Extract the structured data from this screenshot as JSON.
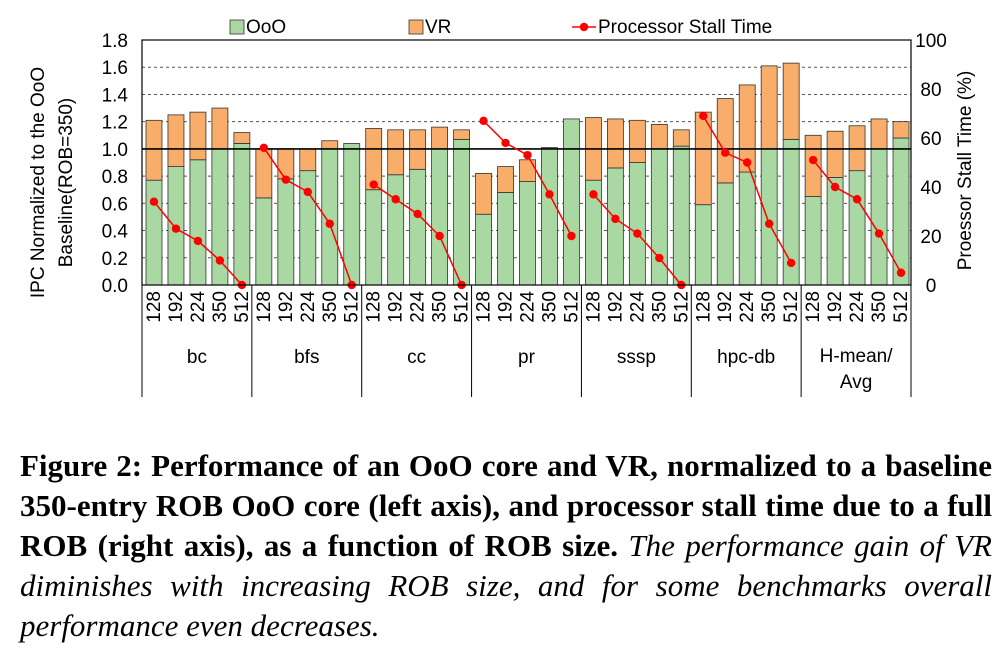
{
  "chart_data": {
    "type": "bar",
    "stacked": true,
    "legend": {
      "position": "top",
      "items": [
        {
          "label": "OoO",
          "kind": "bar",
          "color": "#a9d8a3"
        },
        {
          "label": "VR",
          "kind": "bar",
          "color": "#f9ad6b"
        },
        {
          "label": "Processor Stall Time",
          "kind": "line",
          "color": "#ff0000"
        }
      ]
    },
    "y_left": {
      "label_lines": [
        "IPC Normalized to the OoO",
        "Baseline(ROB=350)"
      ],
      "min": 0,
      "max": 1.8,
      "step": 0.2,
      "tick_labels": [
        "0.0",
        "0.2",
        "0.4",
        "0.6",
        "0.8",
        "1.0",
        "1.2",
        "1.4",
        "1.6",
        "1.8"
      ],
      "reference_line": 1.0
    },
    "y_right": {
      "label": "Proessor Stall Time (%)",
      "min": 0,
      "max": 100,
      "step": 20,
      "tick_labels": [
        "0",
        "20",
        "40",
        "60",
        "80",
        "100"
      ]
    },
    "rob_sizes": [
      "128",
      "192",
      "224",
      "350",
      "512"
    ],
    "groups": [
      {
        "name_lines": [
          "bc"
        ],
        "ooo": [
          0.77,
          0.87,
          0.92,
          1.0,
          1.04
        ],
        "total": [
          1.21,
          1.25,
          1.27,
          1.3,
          1.12
        ],
        "stall": [
          34,
          23,
          18,
          10,
          0
        ]
      },
      {
        "name_lines": [
          "bfs"
        ],
        "ooo": [
          0.64,
          0.78,
          0.84,
          1.0,
          1.04
        ],
        "total": [
          1.0,
          1.0,
          1.0,
          1.06,
          1.04
        ],
        "stall": [
          56,
          43,
          38,
          25,
          0
        ]
      },
      {
        "name_lines": [
          "cc"
        ],
        "ooo": [
          0.7,
          0.81,
          0.85,
          1.0,
          1.07
        ],
        "total": [
          1.15,
          1.14,
          1.14,
          1.16,
          1.14
        ],
        "stall": [
          41,
          35,
          29,
          20,
          0
        ]
      },
      {
        "name_lines": [
          "pr"
        ],
        "ooo": [
          0.52,
          0.68,
          0.76,
          1.01,
          1.22
        ],
        "total": [
          0.82,
          0.87,
          0.92,
          1.01,
          1.22
        ],
        "stall": [
          67,
          58,
          53,
          37,
          20
        ]
      },
      {
        "name_lines": [
          "sssp"
        ],
        "ooo": [
          0.77,
          0.86,
          0.9,
          1.0,
          1.02
        ],
        "total": [
          1.23,
          1.22,
          1.21,
          1.18,
          1.14
        ],
        "stall": [
          37,
          27,
          21,
          11,
          0
        ]
      },
      {
        "name_lines": [
          "hpc-db"
        ],
        "ooo": [
          0.59,
          0.75,
          0.83,
          1.0,
          1.07
        ],
        "total": [
          1.27,
          1.37,
          1.47,
          1.61,
          1.63
        ],
        "stall": [
          69,
          54,
          50,
          25,
          9
        ]
      },
      {
        "name_lines": [
          "H-mean/",
          "Avg"
        ],
        "ooo": [
          0.65,
          0.79,
          0.84,
          1.0,
          1.08
        ],
        "total": [
          1.1,
          1.13,
          1.17,
          1.22,
          1.2
        ],
        "stall": [
          51,
          40,
          35,
          21,
          5
        ]
      }
    ]
  },
  "caption": {
    "bold": "Figure 2: Performance of an OoO core and VR, normalized to a baseline 350-entry ROB OoO core (left axis), and processor stall time due to a full ROB (right axis), as a function of ROB size.",
    "italic": "The performance gain of VR diminishes with increasing ROB size, and for some benchmarks overall performance even decreases."
  }
}
